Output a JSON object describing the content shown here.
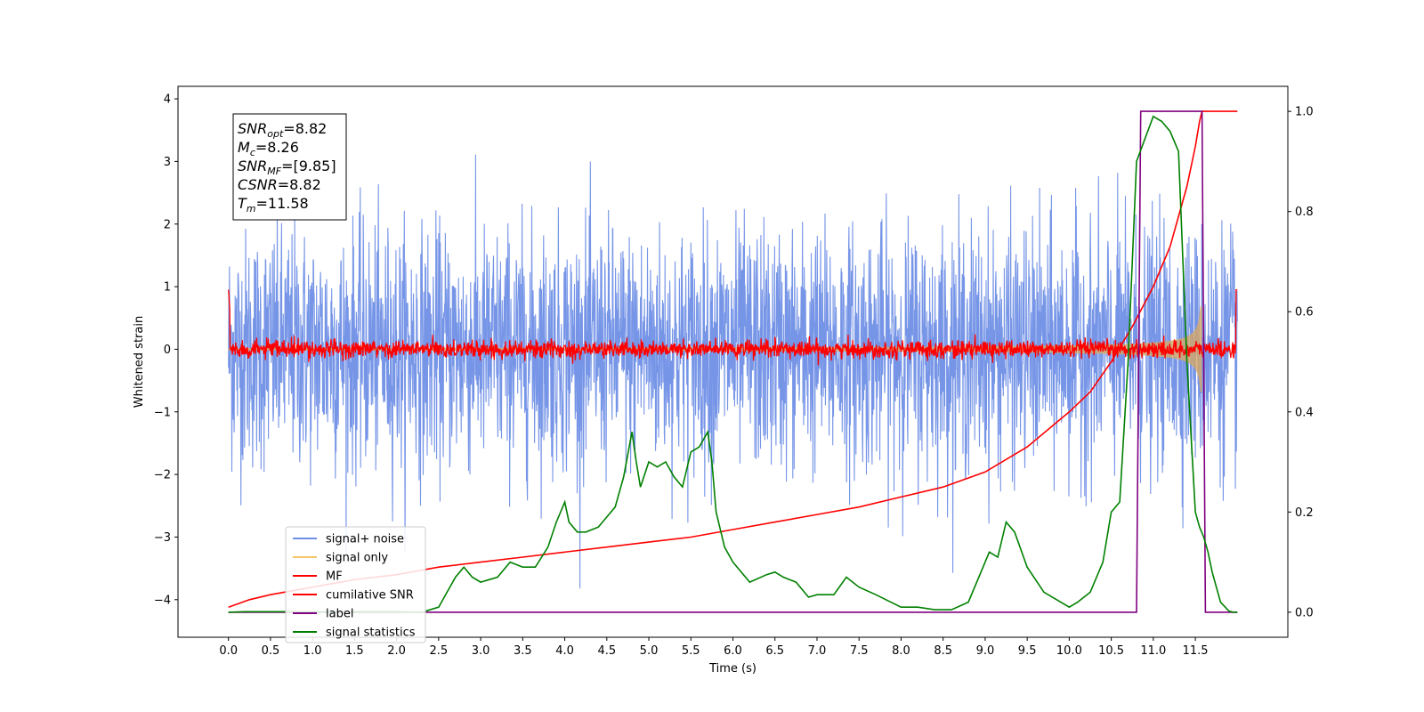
{
  "chart_data": {
    "type": "line",
    "xlabel": "Time (s)",
    "ylabel": "Whitened strain",
    "xlim": [
      -0.6,
      12.6
    ],
    "ylim": [
      -4.6,
      4.2
    ],
    "ylim_right": [
      -0.05,
      1.05
    ],
    "x_ticks": [
      "0.0",
      "0.5",
      "1.0",
      "1.5",
      "2.0",
      "2.5",
      "3.0",
      "3.5",
      "4.0",
      "4.5",
      "5.0",
      "5.5",
      "6.0",
      "6.5",
      "7.0",
      "7.5",
      "8.0",
      "8.5",
      "9.0",
      "9.5",
      "10.0",
      "10.5",
      "11.0",
      "11.5"
    ],
    "y_ticks": [
      "4",
      "3",
      "2",
      "1",
      "0",
      "−1",
      "−2",
      "−3",
      "−4"
    ],
    "y_ticks_right": [
      "1.0",
      "0.8",
      "0.6",
      "0.4",
      "0.2",
      "0.0"
    ],
    "legend_position": "lower-left",
    "legend": [
      {
        "label": "signal+ noise",
        "color": "#6f8fe6"
      },
      {
        "label": "signal only",
        "color": "#f5c66b"
      },
      {
        "label": "MF",
        "color": "#ff0000"
      },
      {
        "label": "cumilative SNR",
        "color": "#ff0000"
      },
      {
        "label": "label",
        "color": "#800080"
      },
      {
        "label": "signal statistics",
        "color": "#008000"
      }
    ],
    "annotation": {
      "lines": [
        {
          "sym": "SNR",
          "sub": "opt",
          "value": "=8.82"
        },
        {
          "sym": "M",
          "sub": "c",
          "value": "=8.26"
        },
        {
          "sym": "SNR",
          "sub": "MF",
          "value": "=[9.85]"
        },
        {
          "sym": "CSNR",
          "sub": "",
          "value": "=8.82"
        },
        {
          "sym": "T",
          "sub": "m",
          "value": "=11.58"
        }
      ]
    },
    "series": [
      {
        "name": "cumilative SNR",
        "axis": "right",
        "x": [
          0,
          0.25,
          0.5,
          1,
          1.5,
          2,
          2.5,
          3,
          3.5,
          4,
          4.5,
          5,
          5.5,
          6,
          6.5,
          7,
          7.5,
          8,
          8.5,
          9,
          9.5,
          10,
          10.25,
          10.5,
          10.75,
          11,
          11.2,
          11.4,
          11.5,
          11.55,
          11.58,
          12.0
        ],
        "y": [
          0.01,
          0.025,
          0.035,
          0.05,
          0.065,
          0.075,
          0.09,
          0.1,
          0.11,
          0.12,
          0.13,
          0.14,
          0.15,
          0.165,
          0.18,
          0.195,
          0.21,
          0.23,
          0.25,
          0.28,
          0.33,
          0.4,
          0.44,
          0.5,
          0.57,
          0.65,
          0.73,
          0.85,
          0.93,
          0.98,
          1.0,
          1.0
        ]
      },
      {
        "name": "label",
        "axis": "right",
        "x": [
          0,
          10.8,
          10.85,
          11.58,
          11.62,
          12.0
        ],
        "y": [
          0,
          0,
          1,
          1,
          0,
          0
        ]
      },
      {
        "name": "signal statistics",
        "axis": "right",
        "x": [
          0,
          0.2,
          0.5,
          1,
          1.5,
          2,
          2.3,
          2.5,
          2.6,
          2.7,
          2.8,
          2.9,
          3.0,
          3.1,
          3.2,
          3.35,
          3.5,
          3.65,
          3.8,
          3.9,
          4.0,
          4.05,
          4.15,
          4.25,
          4.4,
          4.5,
          4.6,
          4.7,
          4.8,
          4.85,
          4.9,
          5.0,
          5.1,
          5.2,
          5.3,
          5.4,
          5.5,
          5.6,
          5.7,
          5.75,
          5.8,
          5.9,
          6.0,
          6.2,
          6.4,
          6.5,
          6.6,
          6.75,
          6.9,
          7.0,
          7.2,
          7.35,
          7.5,
          7.7,
          8.0,
          8.2,
          8.4,
          8.6,
          8.8,
          8.95,
          9.05,
          9.15,
          9.25,
          9.35,
          9.5,
          9.7,
          9.9,
          10.0,
          10.1,
          10.25,
          10.4,
          10.5,
          10.6,
          10.7,
          10.8,
          11.0,
          11.1,
          11.2,
          11.3,
          11.4,
          11.5,
          11.55,
          11.6,
          11.65,
          11.7,
          11.8,
          11.9,
          11.95,
          12.0
        ],
        "y": [
          0,
          0.001,
          0.001,
          0.001,
          0.001,
          0.001,
          0.0,
          0.01,
          0.04,
          0.07,
          0.09,
          0.07,
          0.06,
          0.065,
          0.07,
          0.1,
          0.09,
          0.09,
          0.13,
          0.18,
          0.22,
          0.18,
          0.16,
          0.16,
          0.17,
          0.19,
          0.21,
          0.27,
          0.36,
          0.3,
          0.25,
          0.3,
          0.29,
          0.3,
          0.27,
          0.25,
          0.32,
          0.33,
          0.36,
          0.3,
          0.2,
          0.13,
          0.1,
          0.06,
          0.075,
          0.08,
          0.07,
          0.06,
          0.03,
          0.035,
          0.035,
          0.07,
          0.05,
          0.035,
          0.01,
          0.01,
          0.005,
          0.005,
          0.02,
          0.08,
          0.12,
          0.11,
          0.18,
          0.16,
          0.09,
          0.04,
          0.02,
          0.01,
          0.02,
          0.04,
          0.1,
          0.2,
          0.22,
          0.5,
          0.9,
          0.99,
          0.98,
          0.96,
          0.92,
          0.5,
          0.2,
          0.17,
          0.15,
          0.12,
          0.08,
          0.02,
          0.002,
          0.0,
          0.0
        ]
      }
    ]
  }
}
